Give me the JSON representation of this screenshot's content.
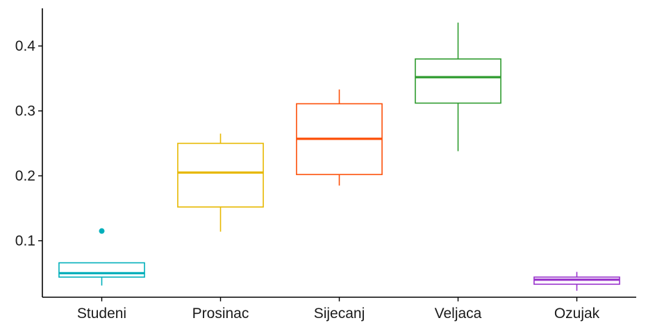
{
  "chart_data": {
    "type": "boxplot",
    "title": "",
    "xlabel": "",
    "ylabel": "",
    "ylim": [
      0.013,
      0.458
    ],
    "yticks": [
      0.1,
      0.2,
      0.3,
      0.4
    ],
    "ytick_labels": [
      "0.1",
      "0.2",
      "0.3",
      "0.4"
    ],
    "grid": false,
    "legend": "none",
    "categories": [
      "Studeni",
      "Prosinac",
      "Sijecanj",
      "Veljaca",
      "Ozujak"
    ],
    "boxes": [
      {
        "category": "Studeni",
        "color": "#00AFBB",
        "whisker_low": 0.031,
        "q1": 0.044,
        "median": 0.05,
        "q3": 0.066,
        "whisker_high": 0.066,
        "outliers": [
          0.115
        ]
      },
      {
        "category": "Prosinac",
        "color": "#E7B800",
        "whisker_low": 0.114,
        "q1": 0.152,
        "median": 0.205,
        "q3": 0.25,
        "whisker_high": 0.265,
        "outliers": []
      },
      {
        "category": "Sijecanj",
        "color": "#FC4E07",
        "whisker_low": 0.185,
        "q1": 0.202,
        "median": 0.257,
        "q3": 0.311,
        "whisker_high": 0.333,
        "outliers": []
      },
      {
        "category": "Veljaca",
        "color": "#2E9B2E",
        "whisker_low": 0.238,
        "q1": 0.312,
        "median": 0.352,
        "q3": 0.38,
        "whisker_high": 0.436,
        "outliers": []
      },
      {
        "category": "Ozujak",
        "color": "#9932CC",
        "whisker_low": 0.023,
        "q1": 0.033,
        "median": 0.04,
        "q3": 0.044,
        "whisker_high": 0.052,
        "outliers": []
      }
    ]
  }
}
